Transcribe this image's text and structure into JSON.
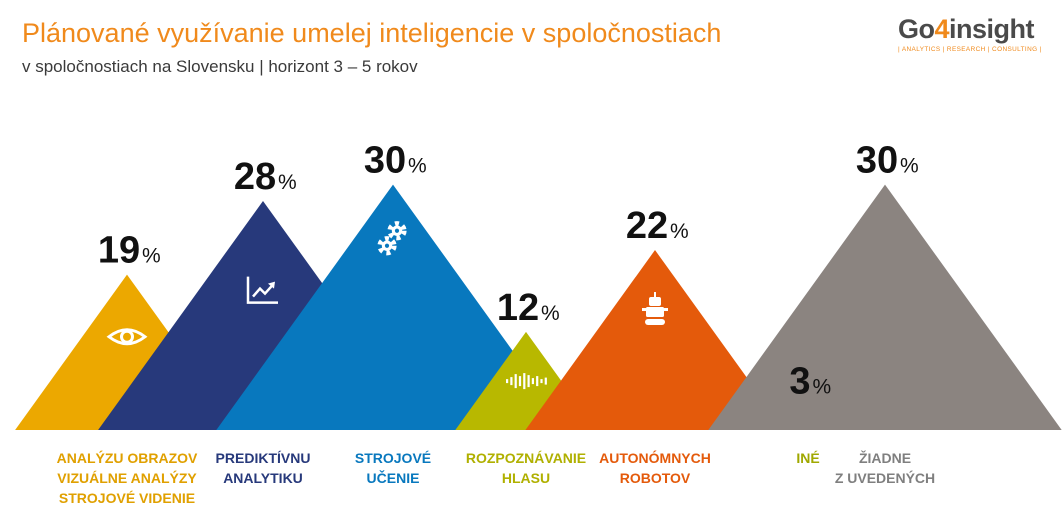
{
  "header": {
    "title": "Plánované využívanie umelej inteligencie v spoločnostiach",
    "subtitle": "v spoločnostiach na Slovensku | horizont 3 – 5 rokov"
  },
  "logo": {
    "word_a": "Go",
    "word_b": "4",
    "word_c": "insight",
    "tagline": "| ANALYTICS | RESEARCH | CONSULTING |"
  },
  "chart_data": {
    "type": "bar",
    "style": "triangles",
    "unit": "%",
    "categories": [
      [
        "ANALÝZU OBRAZOV",
        "VIZUÁLNE ANALÝZY",
        "STROJOVÉ VIDENIE"
      ],
      [
        "PREDIKTÍVNU",
        "ANALYTIKU"
      ],
      [
        "STROJOVÉ",
        "UČENIE"
      ],
      [
        "ROZPOZNÁVANIE",
        "HLASU"
      ],
      [
        "AUTONÓMNYCH",
        "ROBOTOV"
      ],
      [
        "INÉ"
      ],
      [
        "ŽIADNE",
        "Z UVEDENÝCH"
      ]
    ],
    "values": [
      19,
      28,
      30,
      12,
      22,
      3,
      30
    ],
    "colors": [
      "#eca800",
      "#27397b",
      "#0878be",
      "#b8b800",
      "#e45a0b",
      "#a6ac0c",
      "#8b8480"
    ],
    "label_colors": [
      "#e0a000",
      "#27397b",
      "#0878be",
      "#b0b000",
      "#e45a0b",
      "#a0a800",
      "#7f7f7f"
    ],
    "icons": [
      "eye-icon",
      "trend-chart-icon",
      "gears-icon",
      "sound-wave-icon",
      "robot-icon",
      "",
      ""
    ]
  }
}
